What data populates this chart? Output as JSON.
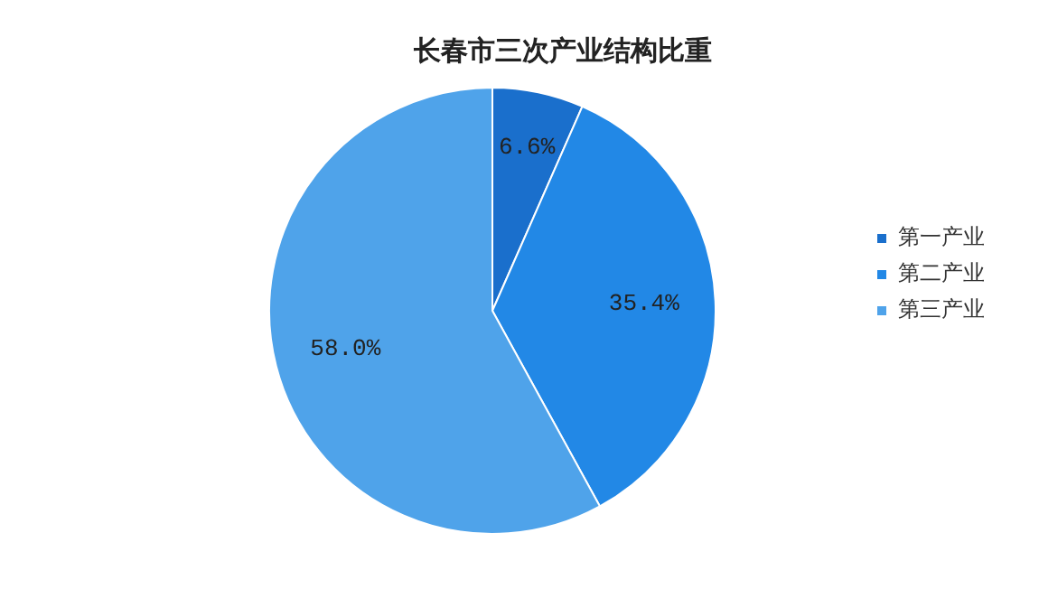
{
  "chart_data": {
    "type": "pie",
    "title": "长春市三次产业结构比重",
    "categories": [
      "第一产业",
      "第二产业",
      "第三产业"
    ],
    "values": [
      6.6,
      35.4,
      58.0
    ],
    "colors": [
      "#1a6fcc",
      "#2288e6",
      "#4fa3ea"
    ],
    "value_labels": [
      "6.6%",
      "35.4%",
      "58.0%"
    ],
    "legend": "right"
  }
}
